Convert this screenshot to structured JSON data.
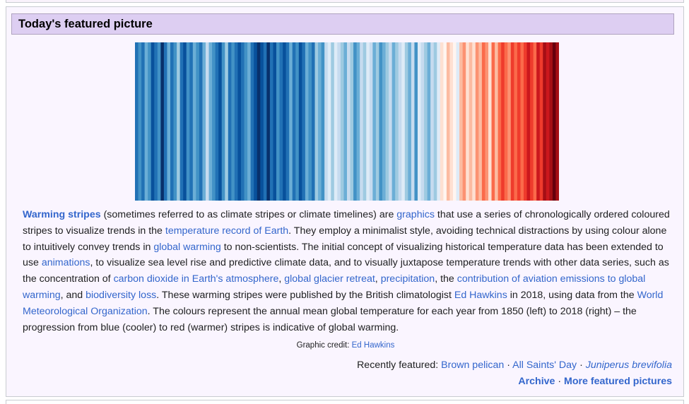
{
  "header": {
    "title": "Today's featured picture"
  },
  "image": {
    "description_icon": "warming-stripes-image",
    "stripe_colors": [
      "#2171b5",
      "#4292c6",
      "#2171b5",
      "#6baed6",
      "#4292c6",
      "#08519c",
      "#2171b5",
      "#4292c6",
      "#08306b",
      "#2171b5",
      "#6baed6",
      "#2171b5",
      "#4292c6",
      "#9ecae1",
      "#2171b5",
      "#08519c",
      "#4292c6",
      "#2171b5",
      "#6baed6",
      "#4292c6",
      "#2171b5",
      "#6baed6",
      "#c6dbef",
      "#6baed6",
      "#4292c6",
      "#2171b5",
      "#08519c",
      "#4292c6",
      "#9ecae1",
      "#2171b5",
      "#4292c6",
      "#2171b5",
      "#08519c",
      "#2171b5",
      "#4292c6",
      "#6baed6",
      "#2171b5",
      "#08519c",
      "#08306b",
      "#08519c",
      "#2171b5",
      "#08306b",
      "#2171b5",
      "#08519c",
      "#4292c6",
      "#2171b5",
      "#08519c",
      "#2171b5",
      "#6baed6",
      "#2171b5",
      "#4292c6",
      "#08519c",
      "#2171b5",
      "#6baed6",
      "#4292c6",
      "#2171b5",
      "#9ecae1",
      "#6baed6",
      "#4292c6",
      "#c6dbef",
      "#deebf7",
      "#9ecae1",
      "#deebf7",
      "#c6dbef",
      "#9ecae1",
      "#6baed6",
      "#c6dbef",
      "#9ecae1",
      "#4292c6",
      "#6baed6",
      "#c6dbef",
      "#9ecae1",
      "#deebf7",
      "#c6dbef",
      "#6baed6",
      "#9ecae1",
      "#4292c6",
      "#6baed6",
      "#9ecae1",
      "#c6dbef",
      "#6baed6",
      "#9ecae1",
      "#c6dbef",
      "#deebf7",
      "#9ecae1",
      "#6baed6",
      "#c6dbef",
      "#4292c6",
      "#deebf7",
      "#c6dbef",
      "#9ecae1",
      "#6baed6",
      "#c6dbef",
      "#9ecae1",
      "#deebf7",
      "#fee0d2",
      "#fff5f0",
      "#fcbba1",
      "#fee0d2",
      "#fff5f0",
      "#deebf7",
      "#fcbba1",
      "#fc9272",
      "#fee0d2",
      "#fcbba1",
      "#fee0d2",
      "#fc9272",
      "#fcbba1",
      "#fb6a4a",
      "#fc9272",
      "#fee0d2",
      "#fb6a4a",
      "#fcbba1",
      "#fb6a4a",
      "#ef3b2c",
      "#fb6a4a",
      "#fc9272",
      "#ef3b2c",
      "#fb6a4a",
      "#ef3b2c",
      "#fb6a4a",
      "#ef3b2c",
      "#cb181d",
      "#ef3b2c",
      "#fb6a4a",
      "#cb181d",
      "#ef3b2c",
      "#a50f15",
      "#cb181d",
      "#a50f15",
      "#67000d",
      "#a50f15"
    ]
  },
  "blurb": {
    "t1": "Warming stripes",
    "t2": " (sometimes referred to as climate stripes or climate timelines) are ",
    "t3": "graphics",
    "t4": " that use a series of chronologically ordered coloured stripes to visualize trends in the ",
    "t5": "temperature record of Earth",
    "t6": ". They employ a minimalist style, avoiding technical distractions by using colour alone to intuitively convey trends in ",
    "t7": "global warming",
    "t8": " to non-scientists. The initial concept of visualizing historical temperature data has been extended to use ",
    "t9": "animations",
    "t10": ", to visualize sea level rise and predictive climate data, and to visually juxtapose temperature trends with other data series, such as the concentration of ",
    "t11": "carbon dioxide in Earth's atmosphere",
    "t12": ", ",
    "t13": "global glacier retreat",
    "t14": ", ",
    "t15": "precipitation",
    "t16": ", the ",
    "t17": "contribution of aviation emissions to global warming",
    "t18": ", and ",
    "t19": "biodiversity loss",
    "t20": ". These warming stripes were published by the British climatologist ",
    "t21": "Ed Hawkins",
    "t22": " in 2018, using data from the ",
    "t23": "World Meteorological Organization",
    "t24": ". The colours represent the annual mean global temperature for each year from 1850 (left) to 2018 (right) – the progression from blue (cooler) to red (warmer) stripes is indicative of global warming."
  },
  "credit": {
    "label": "Graphic credit: ",
    "link": "Ed Hawkins"
  },
  "recent": {
    "label": "Recently featured: ",
    "items": [
      "Brown pelican",
      "All Saints' Day",
      "Juniperus brevifolia"
    ],
    "sep": " · "
  },
  "footer_links": {
    "archive": "Archive",
    "more": "More featured pictures",
    "sep": " · "
  }
}
